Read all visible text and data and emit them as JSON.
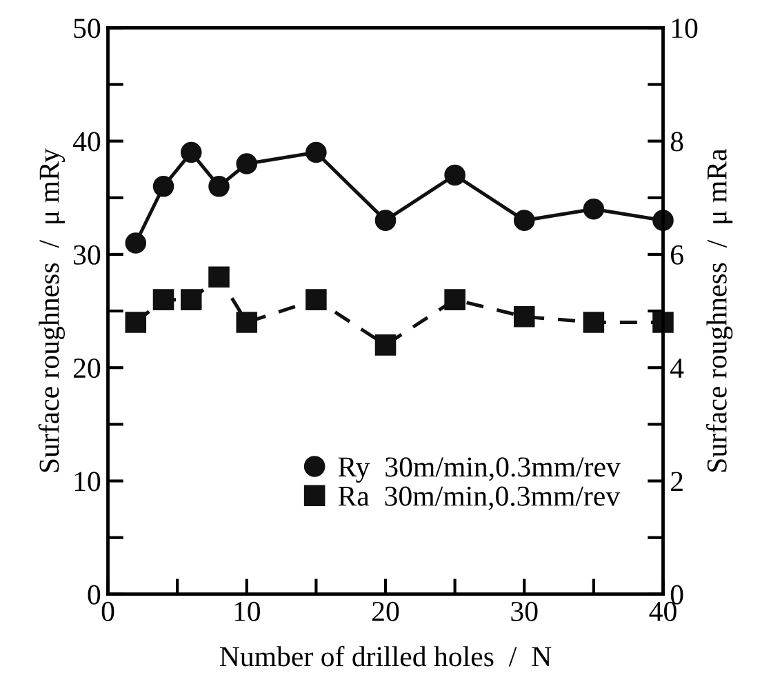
{
  "chart_data": {
    "type": "line",
    "xlabel": "Number of drilled holes  /  N",
    "ylabel": "Surface roughness  /  μ mRy",
    "y2label": "Surface roughness  /  μ mRa",
    "x": [
      2,
      4,
      6,
      8,
      10,
      15,
      20,
      25,
      30,
      35,
      40
    ],
    "series": [
      {
        "name": "Ry  30m/min,0.3mm/rev",
        "color": "#111111",
        "marker": "circle",
        "line_style": "solid",
        "values": [
          31,
          36,
          39,
          36,
          38,
          39,
          33,
          37,
          33,
          34,
          33
        ]
      },
      {
        "name": "Ra  30m/min,0.3mm/rev",
        "color": "#111111",
        "marker": "square",
        "line_style": "dashed",
        "axis": "y2",
        "values": [
          4.8,
          5.2,
          5.2,
          5.6,
          4.8,
          5.2,
          4.4,
          5.2,
          4.9,
          4.8,
          4.8
        ]
      }
    ],
    "xlim": [
      0,
      40
    ],
    "xticks": [
      0,
      {
        "value": 5,
        "label": null
      },
      10,
      {
        "value": 15,
        "label": null
      },
      20,
      {
        "value": 25,
        "label": null
      },
      30,
      {
        "value": 35,
        "label": null
      },
      40
    ],
    "ylim": [
      0,
      50
    ],
    "yticks": [
      0,
      {
        "value": 5,
        "label": null
      },
      10,
      {
        "value": 15,
        "label": null
      },
      20,
      {
        "value": 25,
        "label": null
      },
      30,
      {
        "value": 35,
        "label": null
      },
      40,
      {
        "value": 45,
        "label": null
      },
      50
    ],
    "y2lim": [
      0,
      10
    ],
    "y2ticks": [
      0,
      {
        "value": 1,
        "label": null
      },
      2,
      {
        "value": 3,
        "label": null
      },
      4,
      {
        "value": 5,
        "label": null
      },
      6,
      {
        "value": 7,
        "label": null
      },
      8,
      {
        "value": 9,
        "label": null
      },
      10
    ],
    "grid": false,
    "legend": "bottom right"
  }
}
